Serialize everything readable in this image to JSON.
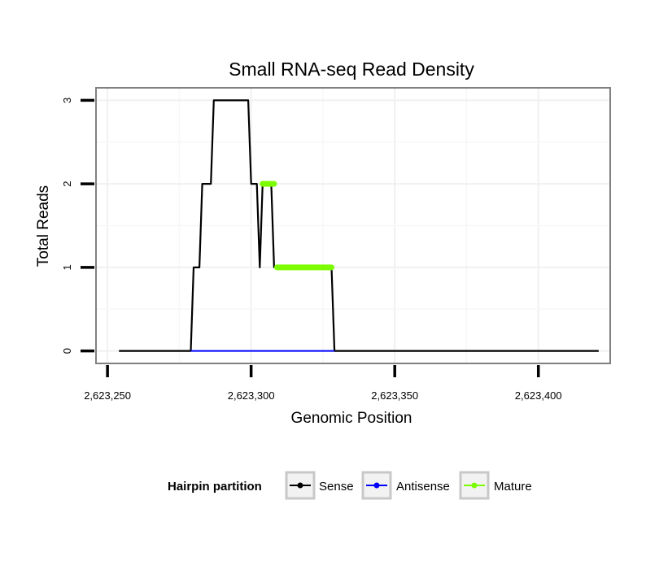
{
  "chart_data": {
    "type": "line",
    "title": "Small RNA-seq Read Density",
    "xlabel": "Genomic Position",
    "ylabel": "Total Reads",
    "xlim": [
      2623246,
      2623425
    ],
    "ylim": [
      -0.15,
      3.15
    ],
    "x_ticks": [
      2623250,
      2623300,
      2623350,
      2623400
    ],
    "x_tick_labels": [
      "2,623,250",
      "2,623,300",
      "2,623,350",
      "2,623,400"
    ],
    "y_ticks": [
      0,
      1,
      2,
      3
    ],
    "y_tick_labels": [
      "0",
      "1",
      "2",
      "3"
    ],
    "grid": true,
    "legend": {
      "title": "Hairpin partition",
      "placement": "bottom",
      "entries": [
        {
          "name": "Sense",
          "color": "#000000"
        },
        {
          "name": "Antisense",
          "color": "#0000ff"
        },
        {
          "name": "Mature",
          "color": "#7cfc00"
        }
      ]
    },
    "series": [
      {
        "name": "Sense",
        "color": "#000000",
        "points": [
          [
            2623254,
            0
          ],
          [
            2623279,
            0
          ],
          [
            2623280,
            1
          ],
          [
            2623282,
            1
          ],
          [
            2623283,
            2
          ],
          [
            2623286,
            2
          ],
          [
            2623287,
            3
          ],
          [
            2623299,
            3
          ],
          [
            2623300,
            2
          ],
          [
            2623302,
            2
          ],
          [
            2623303,
            1
          ],
          [
            2623304,
            2
          ],
          [
            2623307,
            2
          ],
          [
            2623308,
            1
          ],
          [
            2623328,
            1
          ],
          [
            2623329,
            0
          ],
          [
            2623421,
            0
          ]
        ]
      },
      {
        "name": "Antisense",
        "color": "#0000ff",
        "points": [
          [
            2623279,
            0
          ],
          [
            2623329,
            0
          ]
        ]
      },
      {
        "name": "Mature",
        "color": "#7cfc00",
        "segments": [
          [
            [
              2623304,
              2
            ],
            [
              2623308,
              2
            ]
          ],
          [
            [
              2623309,
              1
            ],
            [
              2623328,
              1
            ]
          ]
        ]
      }
    ]
  }
}
